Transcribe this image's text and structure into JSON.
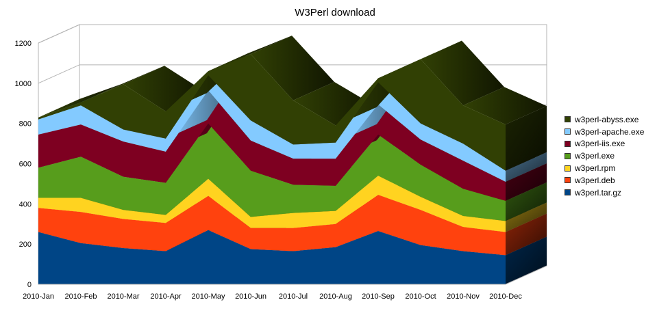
{
  "chart_data": {
    "type": "area",
    "stacked": true,
    "three_d": true,
    "title": "W3Perl download",
    "categories": [
      "2010-Jan",
      "2010-Feb",
      "2010-Mar",
      "2010-Apr",
      "2010-May",
      "2010-Jun",
      "2010-Jul",
      "2010-Aug",
      "2010-Sep",
      "2010-Oct",
      "2010-Nov",
      "2010-Dec"
    ],
    "ylim": [
      0,
      1200
    ],
    "yticks": [
      0,
      200,
      400,
      600,
      800,
      1000,
      1200
    ],
    "grid": true,
    "legend_position": "right",
    "series": [
      {
        "name": "w3perl.tar.gz",
        "color": "#004586",
        "values": [
          260,
          205,
          180,
          165,
          270,
          175,
          165,
          185,
          265,
          195,
          165,
          145
        ]
      },
      {
        "name": "w3perl.deb",
        "color": "#ff420e",
        "values": [
          120,
          155,
          145,
          140,
          170,
          105,
          115,
          115,
          180,
          175,
          120,
          115
        ]
      },
      {
        "name": "w3perl.rpm",
        "color": "#ffd320",
        "values": [
          50,
          70,
          45,
          40,
          85,
          55,
          75,
          65,
          95,
          65,
          55,
          55
        ]
      },
      {
        "name": "w3perl.exe",
        "color": "#579d1c",
        "values": [
          150,
          205,
          165,
          160,
          275,
          230,
          140,
          125,
          205,
          160,
          135,
          100
        ]
      },
      {
        "name": "w3perl-iis.exe",
        "color": "#7e0021",
        "values": [
          165,
          160,
          175,
          155,
          165,
          150,
          130,
          135,
          150,
          125,
          140,
          95
        ]
      },
      {
        "name": "w3perl-apache.exe",
        "color": "#83caff",
        "values": [
          75,
          95,
          60,
          65,
          75,
          100,
          70,
          80,
          110,
          80,
          85,
          55
        ]
      },
      {
        "name": "w3perl-abyss.exe",
        "color": "#314004",
        "values": [
          10,
          15,
          225,
          135,
          20,
          330,
          220,
          85,
          20,
          320,
          190,
          230
        ]
      }
    ]
  }
}
